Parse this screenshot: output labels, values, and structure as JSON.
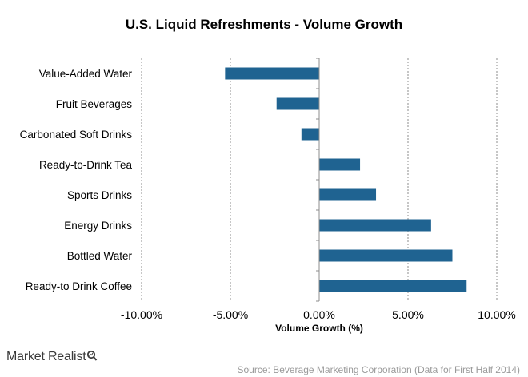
{
  "chart_data": {
    "type": "bar",
    "orientation": "horizontal",
    "title": "U.S. Liquid Refreshments  - Volume Growth",
    "xlabel": "Volume Growth (%)",
    "ylabel": "",
    "xlim": [
      -10,
      10
    ],
    "x_ticks": [
      -10,
      -5,
      0,
      5,
      10
    ],
    "x_tick_labels": [
      "-10.00%",
      "-5.00%",
      "0.00%",
      "5.00%",
      "10.00%"
    ],
    "grid": "vertical dashed",
    "bar_color": "#1f6391",
    "categories": [
      "Value-Added Water",
      "Fruit Beverages",
      "Carbonated Soft Drinks",
      "Ready-to-Drink Tea",
      "Sports Drinks",
      "Energy Drinks",
      "Bottled Water",
      "Ready-to Drink Coffee"
    ],
    "values": [
      -5.3,
      -2.4,
      -1.0,
      2.3,
      3.2,
      6.3,
      7.5,
      8.3
    ]
  },
  "branding": {
    "logo_text": "Market Realist"
  },
  "source": "Source: Beverage Marketing Corporation (Data for First Half 2014)"
}
